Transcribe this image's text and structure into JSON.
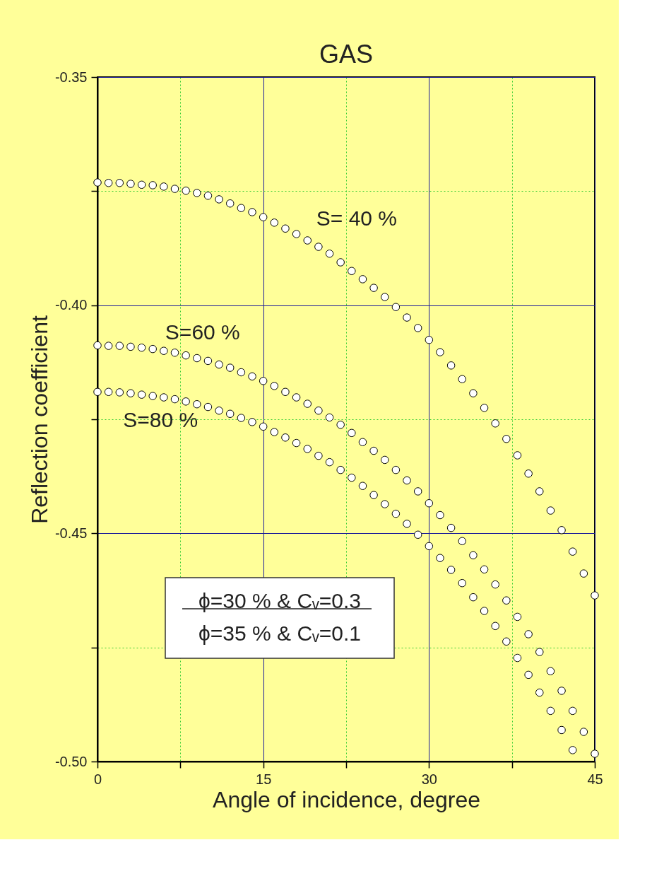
{
  "chart_data": {
    "type": "scatter",
    "title": "GAS",
    "xlabel": "Angle of incidence, degree",
    "ylabel": "Reflection coefficient",
    "x": [
      0,
      1,
      2,
      3,
      4,
      5,
      6,
      7,
      8,
      9,
      10,
      11,
      12,
      13,
      14,
      15,
      16,
      17,
      18,
      19,
      20,
      21,
      22,
      23,
      24,
      25,
      26,
      27,
      28,
      29,
      30,
      31,
      32,
      33,
      34,
      35,
      36,
      37,
      38,
      39,
      40,
      41,
      42,
      43,
      44,
      45
    ],
    "series": [
      {
        "name": "S= 40 %",
        "color": "#ffffff",
        "values": [
          -0.3731,
          -0.3732,
          -0.3732,
          -0.3734,
          -0.3736,
          -0.3737,
          -0.374,
          -0.3745,
          -0.3749,
          -0.3754,
          -0.376,
          -0.3768,
          -0.3777,
          -0.3787,
          -0.3796,
          -0.3807,
          -0.3819,
          -0.3832,
          -0.3844,
          -0.3858,
          -0.3872,
          -0.3887,
          -0.3906,
          -0.3925,
          -0.3943,
          -0.3962,
          -0.3982,
          -0.4004,
          -0.4027,
          -0.405,
          -0.4076,
          -0.4103,
          -0.4132,
          -0.4162,
          -0.4193,
          -0.4225,
          -0.4259,
          -0.4293,
          -0.4329,
          -0.4369,
          -0.4408,
          -0.445,
          -0.4493,
          -0.454,
          -0.4588,
          -0.4636
        ]
      },
      {
        "name": "S=60 %",
        "color": "#ffffff",
        "values": [
          -0.4088,
          -0.4089,
          -0.4089,
          -0.4091,
          -0.4093,
          -0.4096,
          -0.41,
          -0.4104,
          -0.411,
          -0.4116,
          -0.4122,
          -0.413,
          -0.4137,
          -0.4147,
          -0.4156,
          -0.4166,
          -0.4177,
          -0.419,
          -0.4202,
          -0.4216,
          -0.4231,
          -0.4246,
          -0.4262,
          -0.428,
          -0.43,
          -0.4319,
          -0.4339,
          -0.4361,
          -0.4384,
          -0.4408,
          -0.4434,
          -0.446,
          -0.4488,
          -0.4517,
          -0.4548,
          -0.4579,
          -0.4612,
          -0.4647,
          -0.4683,
          -0.4721,
          -0.476,
          -0.4802,
          -0.4845,
          -0.4889,
          -0.4935,
          -0.4983
        ]
      },
      {
        "name": "S=80 %",
        "color": "#ffffff",
        "values": [
          -0.419,
          -0.419,
          -0.4191,
          -0.4193,
          -0.4196,
          -0.4199,
          -0.4202,
          -0.4206,
          -0.4211,
          -0.4217,
          -0.4223,
          -0.4231,
          -0.4238,
          -0.4247,
          -0.4256,
          -0.4266,
          -0.4278,
          -0.429,
          -0.4302,
          -0.4315,
          -0.433,
          -0.4344,
          -0.4361,
          -0.4378,
          -0.4396,
          -0.4416,
          -0.4436,
          -0.4457,
          -0.4479,
          -0.4503,
          -0.4528,
          -0.4554,
          -0.458,
          -0.4609,
          -0.464,
          -0.467,
          -0.4703,
          -0.4737,
          -0.4773,
          -0.481,
          -0.4849,
          -0.4889,
          -0.4931,
          -0.4975,
          null,
          null
        ]
      }
    ],
    "xlim": [
      0,
      45
    ],
    "ylim": [
      -0.5,
      -0.35
    ],
    "xticks": [
      0,
      {
        "value": 7.5,
        "label": null
      },
      15,
      {
        "value": 22.5,
        "label": null
      },
      30,
      {
        "value": 37.5,
        "label": null
      },
      45
    ],
    "yticks": [
      {
        "value": -0.5,
        "label": "-0.50"
      },
      {
        "value": -0.475,
        "label": null
      },
      {
        "value": -0.45,
        "label": "-0.45"
      },
      {
        "value": -0.425,
        "label": null
      },
      {
        "value": -0.4,
        "label": "-0.40"
      },
      {
        "value": -0.375,
        "label": null
      },
      {
        "value": -0.35,
        "label": "-0.35"
      }
    ],
    "grid": true,
    "legend": false,
    "marker": "circle",
    "annotations": [
      "ϕ=30 % & Cᵥ=0.3",
      "ϕ=35 % & Cᵥ=0.1"
    ]
  }
}
